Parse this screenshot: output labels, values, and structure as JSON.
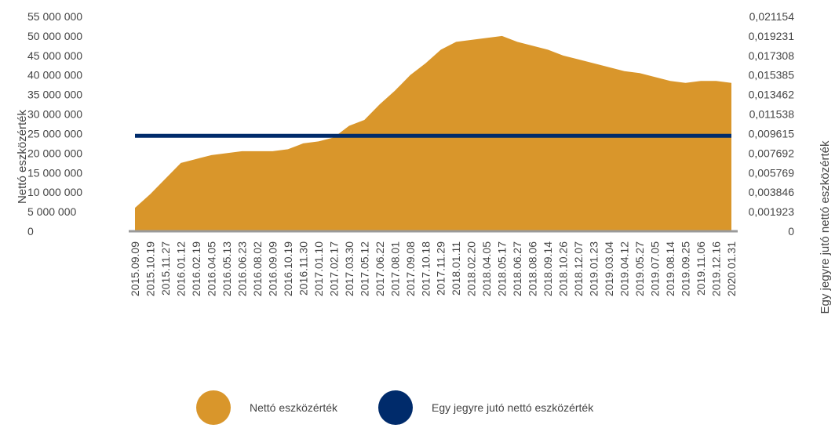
{
  "chart_data": {
    "type": "area",
    "ylabel_left": "Nettó eszközérték",
    "ylabel_right": "Egy jegyre jutó nettó eszközérték",
    "left_ticks": [
      "55 000 000",
      "50 000 000",
      "45 000 000",
      "40 000 000",
      "35 000 000",
      "30 000 000",
      "25 000 000",
      "20 000 000",
      "15 000 000",
      "10 000 000",
      "5 000 000",
      "0"
    ],
    "right_ticks": [
      "0,021154",
      "0,019231",
      "0,017308",
      "0,015385",
      "0,013462",
      "0,011538",
      "0,009615",
      "0,007692",
      "0,005769",
      "0,003846",
      "0,001923",
      "0"
    ],
    "ylim_left": [
      0,
      55000000
    ],
    "ylim_right": [
      0,
      0.021154
    ],
    "x_tick_labels": [
      "2015.09.09",
      "2015.10.19",
      "2015.11.27",
      "2016.01.12",
      "2016.02.19",
      "2016.04.05",
      "2016.05.13",
      "2016.06.23",
      "2016.08.02",
      "2016.09.09",
      "2016.10.19",
      "2016.11.30",
      "2017.01.10",
      "2017.02.17",
      "2017.03.30",
      "2017.05.12",
      "2017.06.22",
      "2017.08.01",
      "2017.09.08",
      "2017.10.18",
      "2017.11.29",
      "2018.01.11",
      "2018.02.20",
      "2018.04.05",
      "2018.05.17",
      "2018.06.27",
      "2018.08.06",
      "2018.09.14",
      "2018.10.26",
      "2018.12.07",
      "2019.01.23",
      "2019.03.04",
      "2019.04.12",
      "2019.05.27",
      "2019.07.05",
      "2019.08.14",
      "2019.09.25",
      "2019.11.06",
      "2019.12.16",
      "2020.01.31"
    ],
    "series": [
      {
        "name": "Nettó eszközérték",
        "axis": "left",
        "color": "#D9962B",
        "values": [
          6000000,
          9500000,
          13500000,
          17500000,
          18500000,
          19500000,
          20000000,
          20500000,
          20500000,
          20500000,
          21000000,
          22500000,
          23000000,
          24000000,
          27000000,
          28500000,
          32500000,
          36000000,
          40000000,
          43000000,
          46500000,
          48500000,
          49000000,
          49500000,
          50000000,
          48500000,
          47500000,
          46500000,
          45000000,
          44000000,
          43000000,
          42000000,
          41000000,
          40500000,
          39500000,
          38500000,
          38000000,
          38500000,
          38500000,
          38000000
        ]
      },
      {
        "name": "Egy jegyre jutó nettó eszközérték",
        "axis": "right",
        "color": "#002B6B",
        "values": [
          0.0094,
          0.0094,
          0.0094,
          0.0094,
          0.0094,
          0.0094,
          0.0094,
          0.0094,
          0.0094,
          0.0094,
          0.0094,
          0.0094,
          0.0094,
          0.0094,
          0.0094,
          0.0094,
          0.0094,
          0.0094,
          0.0094,
          0.0094,
          0.0094,
          0.0094,
          0.0094,
          0.0094,
          0.0094,
          0.0094,
          0.0094,
          0.0094,
          0.0094,
          0.0094,
          0.0094,
          0.0094,
          0.0094,
          0.0094,
          0.0094,
          0.0094,
          0.0094,
          0.0094,
          0.0094,
          0.0094
        ]
      }
    ],
    "legend_position": "bottom-center"
  }
}
